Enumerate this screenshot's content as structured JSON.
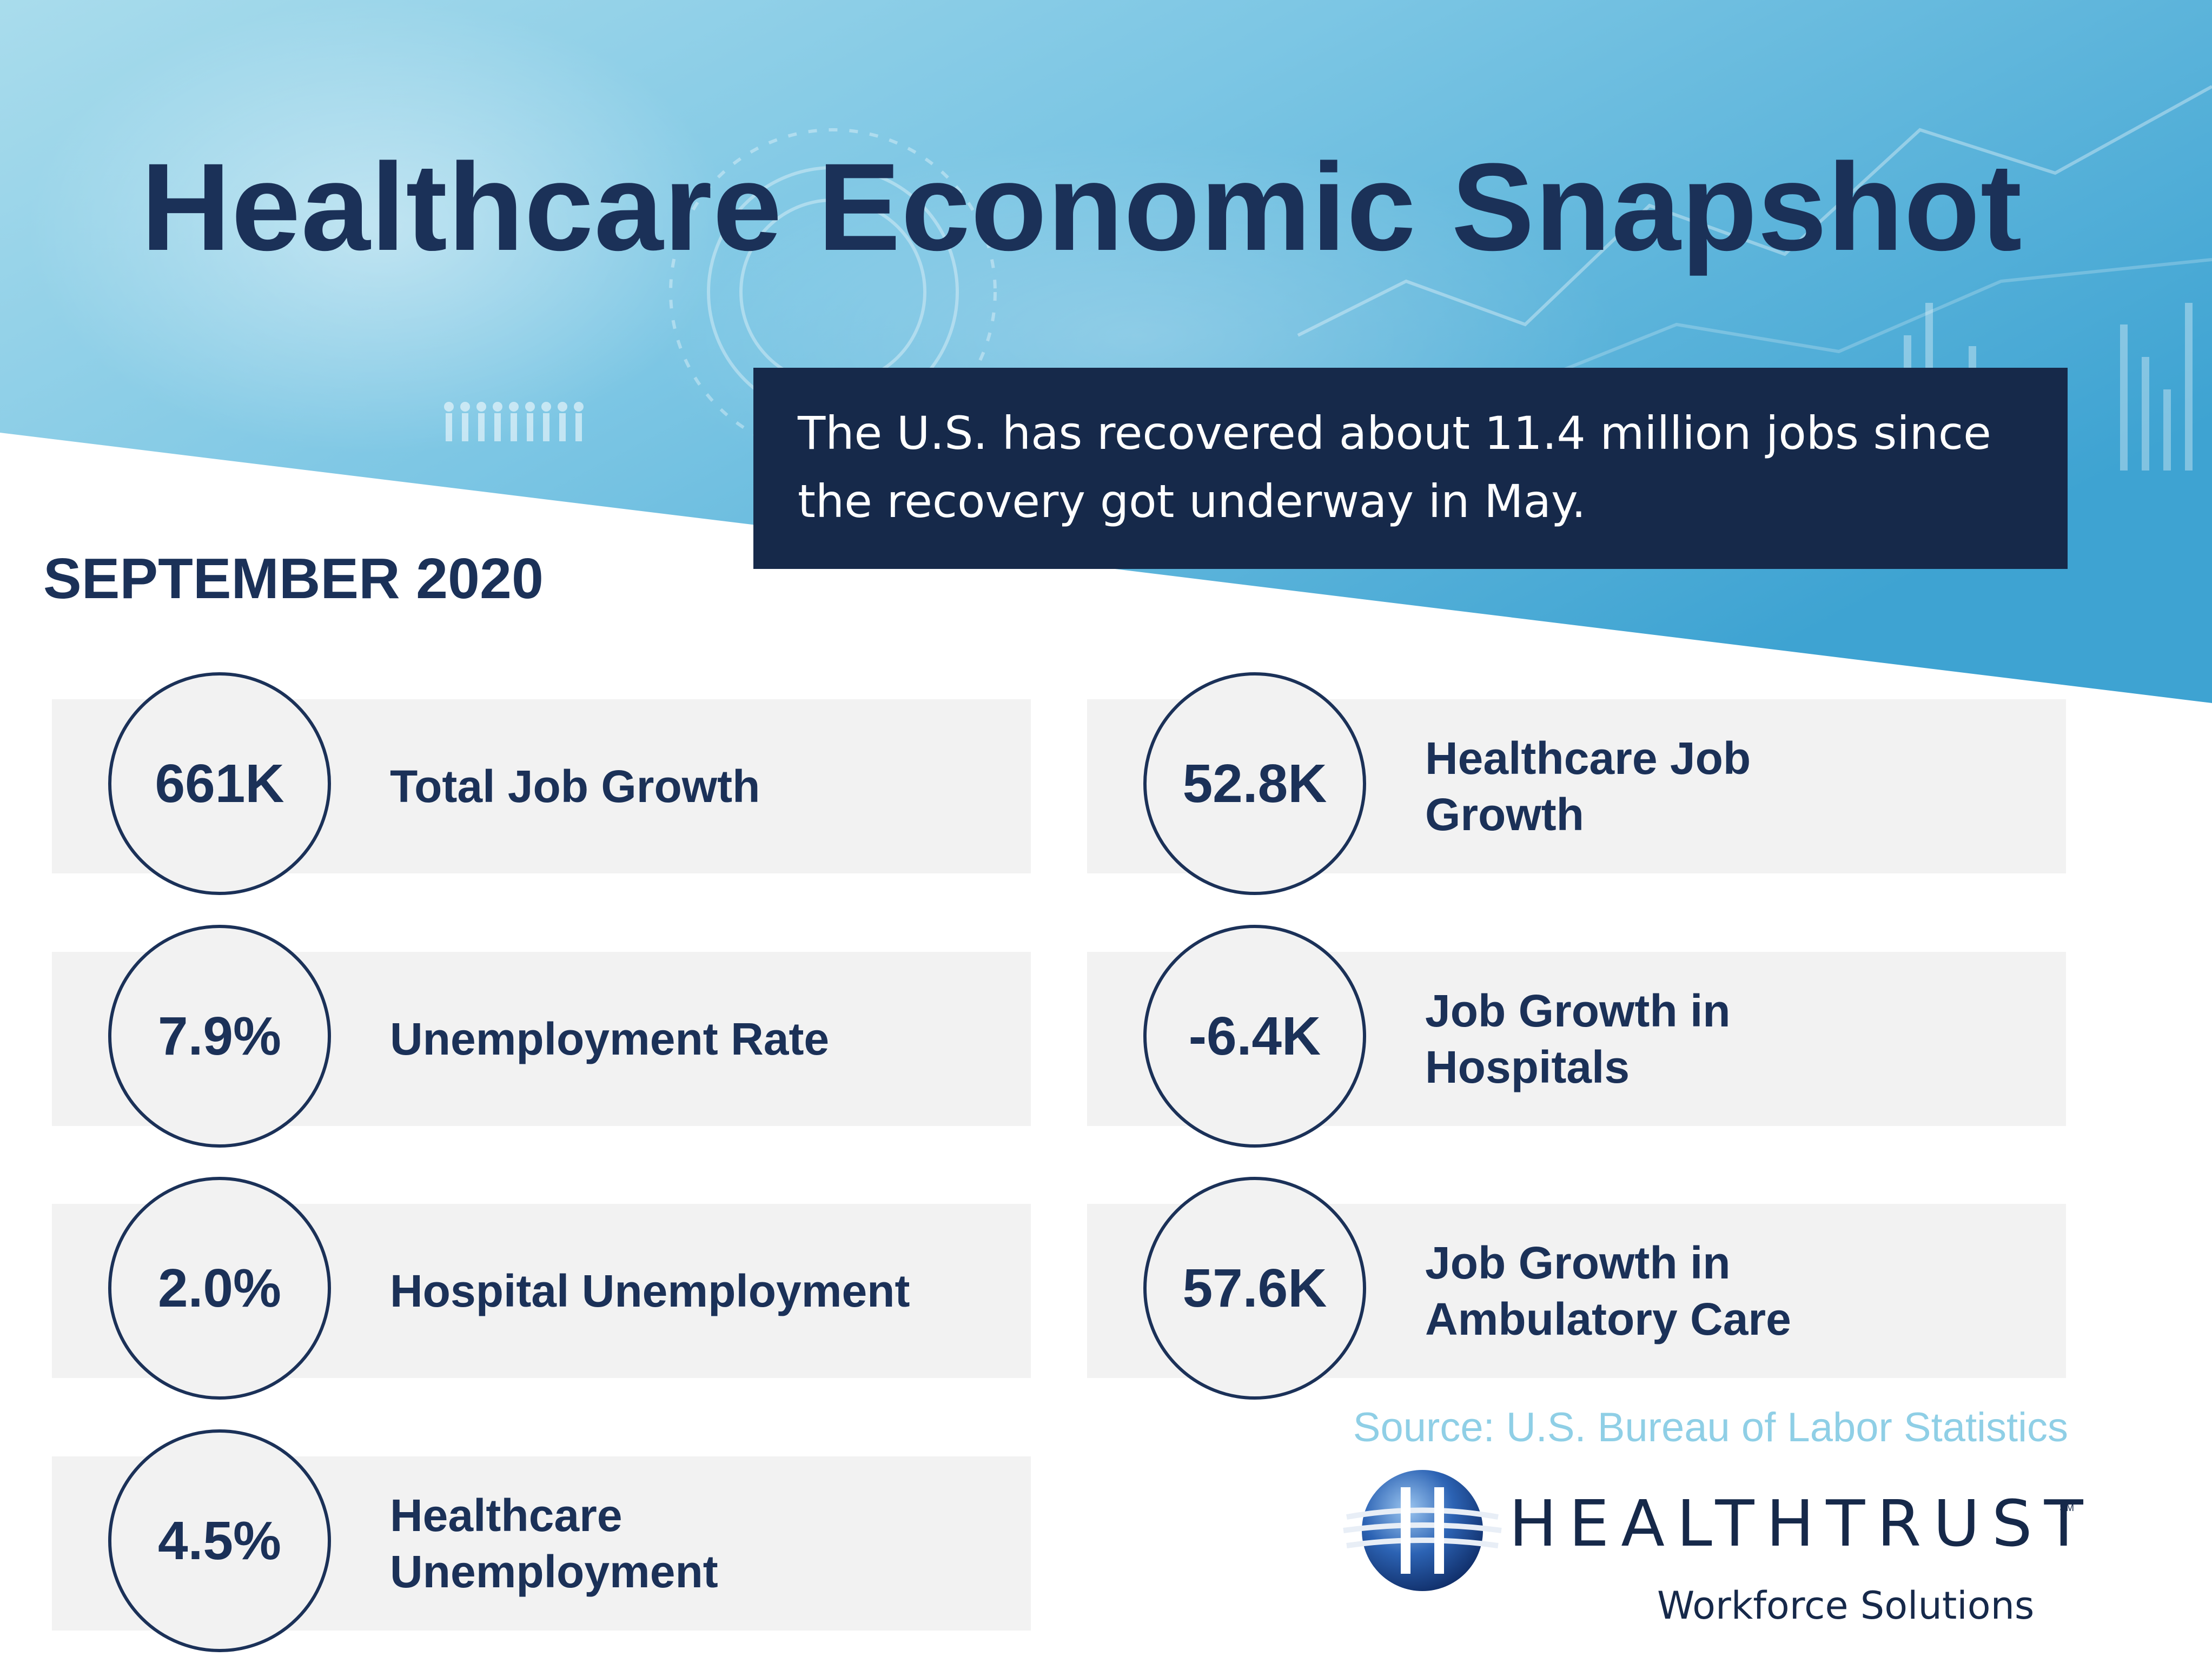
{
  "header": {
    "title": "Healthcare Economic Snapshot",
    "callout": "The U.S. has recovered about 11.4 million jobs since the recovery got underway in May."
  },
  "period": "SEPTEMBER 2020",
  "stats": [
    {
      "value": "661K",
      "label": "Total Job Growth"
    },
    {
      "value": "52.8K",
      "label": "Healthcare Job Growth"
    },
    {
      "value": "7.9%",
      "label": "Unemployment Rate"
    },
    {
      "value": "-6.4K",
      "label": "Job Growth in Hospitals"
    },
    {
      "value": "2.0%",
      "label": "Hospital Unemployment"
    },
    {
      "value": "57.6K",
      "label": "Job Growth in Ambulatory Care"
    },
    {
      "value": "4.5%",
      "label": "Healthcare Unemployment"
    }
  ],
  "source": "Source: U.S. Bureau of Labor Statistics",
  "logo": {
    "name": "HEALTHTRUST",
    "mark": "SM",
    "subtitle": "Workforce Solutions"
  },
  "colors": {
    "navy": "#1b3158",
    "callout_bg": "#16294a",
    "banner_light": "#a9dcec",
    "banner_dark": "#3ea3d2",
    "tile_bg": "#f2f2f2",
    "source_text": "#8fcfe6"
  }
}
